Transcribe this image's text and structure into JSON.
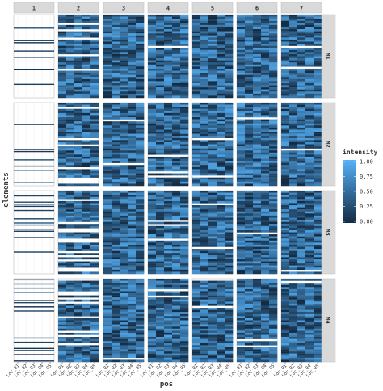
{
  "chart_data": {
    "type": "heatmap",
    "title": "",
    "xlabel": "pos",
    "ylabel": "elements",
    "x_categories": [
      "Loc_01",
      "Loc_02",
      "Loc_03",
      "Loc_04",
      "Loc_05"
    ],
    "column_facets": [
      "1",
      "2",
      "3",
      "4",
      "5",
      "6",
      "7"
    ],
    "row_facets": [
      "M1",
      "M2",
      "M3",
      "M4"
    ],
    "legend": {
      "title": "intensity",
      "ticks": [
        "1.00",
        "0.75",
        "0.50",
        "0.25",
        "0.00"
      ],
      "range": [
        0,
        1
      ],
      "placement": "right"
    },
    "color_low": "#132B43",
    "color_high": "#56B1F7",
    "values_note": "",
    "grid": true
  }
}
